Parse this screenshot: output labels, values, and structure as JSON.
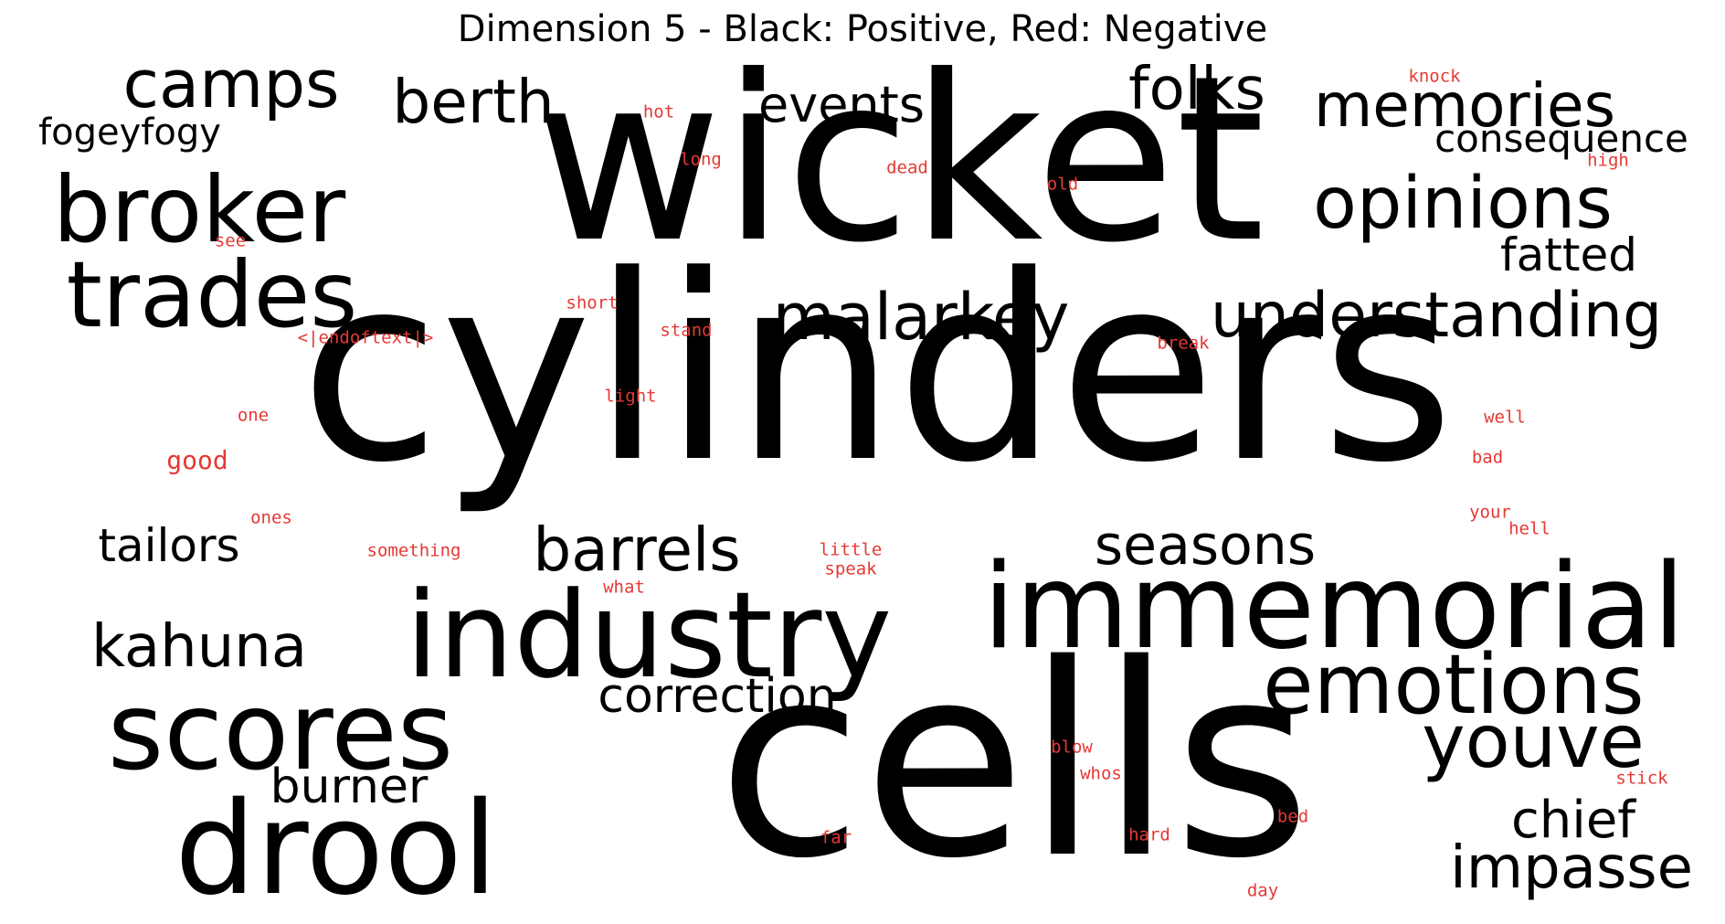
{
  "title": "Dimension 5 - Black: Positive, Red: Negative",
  "colors": {
    "positive": "#000000",
    "negative": "#e53935",
    "background": "#ffffff"
  },
  "positive_words": [
    "wicket",
    "cylinders",
    "cells",
    "industry",
    "immemorial",
    "drool",
    "scores",
    "broker",
    "trades",
    "emotions",
    "youve",
    "opinions",
    "memories",
    "understanding",
    "malarkey",
    "barrels",
    "seasons",
    "camps",
    "berth",
    "folks",
    "events",
    "kahuna",
    "correction",
    "impasse",
    "chief",
    "burner",
    "tailors",
    "fatted",
    "consequence",
    "fogeyfogy"
  ],
  "negative_words": [
    "knock",
    "hot",
    "long",
    "dead",
    "old",
    "high",
    "see",
    "short",
    "stand",
    "<|endoftext|>",
    "break",
    "light",
    "one",
    "well",
    "good",
    "bad",
    "ones",
    "your",
    "hell",
    "something",
    "little",
    "speak",
    "what",
    "blow",
    "whos",
    "stick",
    "bed",
    "far",
    "hard",
    "day"
  ]
}
